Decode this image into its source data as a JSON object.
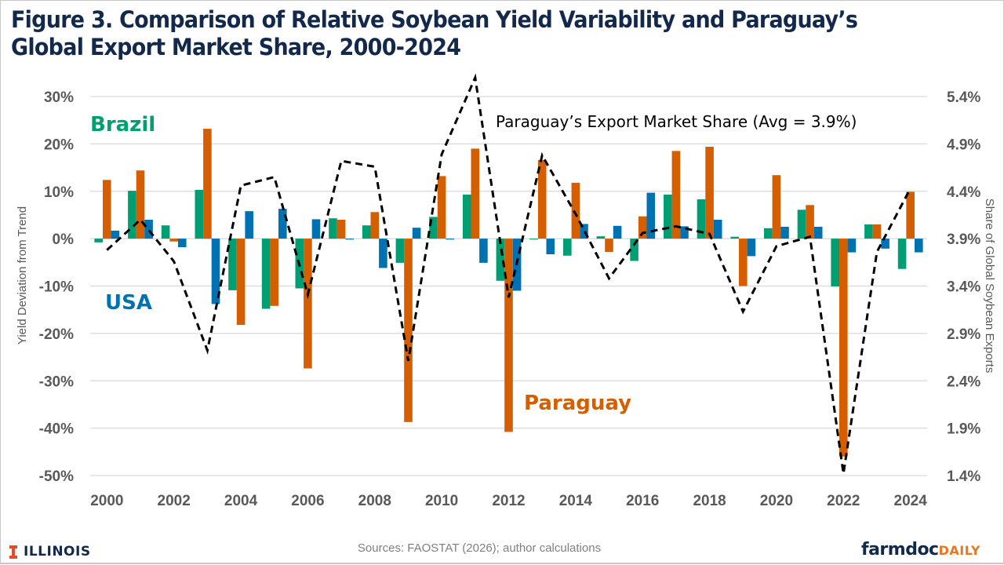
{
  "header": {
    "title_line1": "Figure 3. Comparison of Relative Soybean Yield Variability and Paraguay’s",
    "title_line2": "Global Export Market Share, 2000-2024"
  },
  "footer": {
    "source": "Sources: FAOSTAT (2026); author calculations",
    "left_logo_text": "ILLINOIS",
    "right_logo_main": "farmdoc",
    "right_logo_accent": "DAILY"
  },
  "colors": {
    "brazil": "#009E73",
    "paraguay": "#D55E00",
    "usa": "#0072B2",
    "line": "#000000",
    "title": "#13294B",
    "grid": "#d9d9d9",
    "tick": "#595959"
  },
  "chart_data": {
    "type": "bar",
    "title": "Figure 3. Comparison of Relative Soybean Yield Variability and Paraguay’s Global Export Market Share, 2000-2024",
    "xlabel": "",
    "ylabel": "Yield Deviation from Trend",
    "y2label": "Share of Global Soybean Exports",
    "categories": [
      "2000",
      "2001",
      "2002",
      "2003",
      "2004",
      "2005",
      "2006",
      "2007",
      "2008",
      "2009",
      "2010",
      "2011",
      "2012",
      "2013",
      "2014",
      "2015",
      "2016",
      "2017",
      "2018",
      "2019",
      "2020",
      "2021",
      "2022",
      "2023",
      "2024"
    ],
    "x_tick_labels": [
      "2000",
      "2002",
      "2004",
      "2006",
      "2008",
      "2010",
      "2012",
      "2014",
      "2016",
      "2018",
      "2020",
      "2022",
      "2024"
    ],
    "ylim": [
      -50,
      30
    ],
    "y_ticks": [
      30,
      20,
      10,
      0,
      -10,
      -20,
      -30,
      -40,
      -50
    ],
    "y_tick_labels": [
      "30%",
      "20%",
      "10%",
      "0%",
      "-10%",
      "-20%",
      "-30%",
      "-40%",
      "-50%"
    ],
    "y2lim": [
      1.4,
      5.4
    ],
    "y2_ticks": [
      5.4,
      4.9,
      4.4,
      3.9,
      3.4,
      2.9,
      2.4,
      1.9,
      1.4
    ],
    "y2_tick_labels": [
      "5.4%",
      "4.9%",
      "4.4%",
      "3.9%",
      "3.4%",
      "2.9%",
      "2.4%",
      "1.9%",
      "1.4%"
    ],
    "grid": true,
    "series": [
      {
        "name": "Brazil",
        "type": "bar",
        "axis": "left",
        "values": [
          -0.8,
          10.1,
          2.8,
          10.3,
          -10.9,
          -14.8,
          -10.5,
          4.3,
          2.8,
          -5.1,
          4.6,
          9.3,
          -8.9,
          -0.2,
          -3.6,
          0.5,
          -4.7,
          9.3,
          8.3,
          0.4,
          2.2,
          6.1,
          -10.1,
          3.0,
          -6.4
        ]
      },
      {
        "name": "Paraguay",
        "type": "bar",
        "axis": "left",
        "values": [
          12.4,
          14.4,
          -0.6,
          23.2,
          -18.2,
          -14.2,
          -27.4,
          4.0,
          5.6,
          -38.7,
          13.2,
          19.0,
          -40.8,
          16.6,
          11.8,
          -2.8,
          4.7,
          18.5,
          19.4,
          -10.0,
          13.4,
          7.1,
          -46.0,
          3.0,
          9.9
        ]
      },
      {
        "name": "USA",
        "type": "bar",
        "axis": "left",
        "values": [
          1.7,
          4.0,
          -1.8,
          -13.8,
          5.8,
          6.3,
          4.1,
          -0.2,
          -6.2,
          2.3,
          -0.2,
          -5.1,
          -11.0,
          -3.3,
          3.1,
          2.7,
          9.7,
          2.6,
          4.0,
          -3.7,
          2.5,
          2.5,
          -2.9,
          -2.1,
          -2.9
        ]
      },
      {
        "name": "Paraguay’s Export Market Share",
        "type": "line",
        "axis": "right",
        "style": "dashed",
        "values": [
          3.78,
          4.1,
          3.66,
          2.72,
          4.46,
          4.55,
          3.31,
          4.72,
          4.66,
          2.61,
          4.79,
          5.6,
          3.28,
          4.78,
          4.16,
          3.48,
          3.96,
          4.03,
          3.95,
          3.13,
          3.82,
          3.92,
          1.42,
          3.76,
          4.43
        ]
      }
    ],
    "annotations": {
      "brazil_label": "Brazil",
      "usa_label": "USA",
      "paraguay_label": "Paraguay",
      "line_label": "Paraguay’s Export Market Share (Avg = 3.9%)"
    },
    "legend": "inline-labels"
  }
}
